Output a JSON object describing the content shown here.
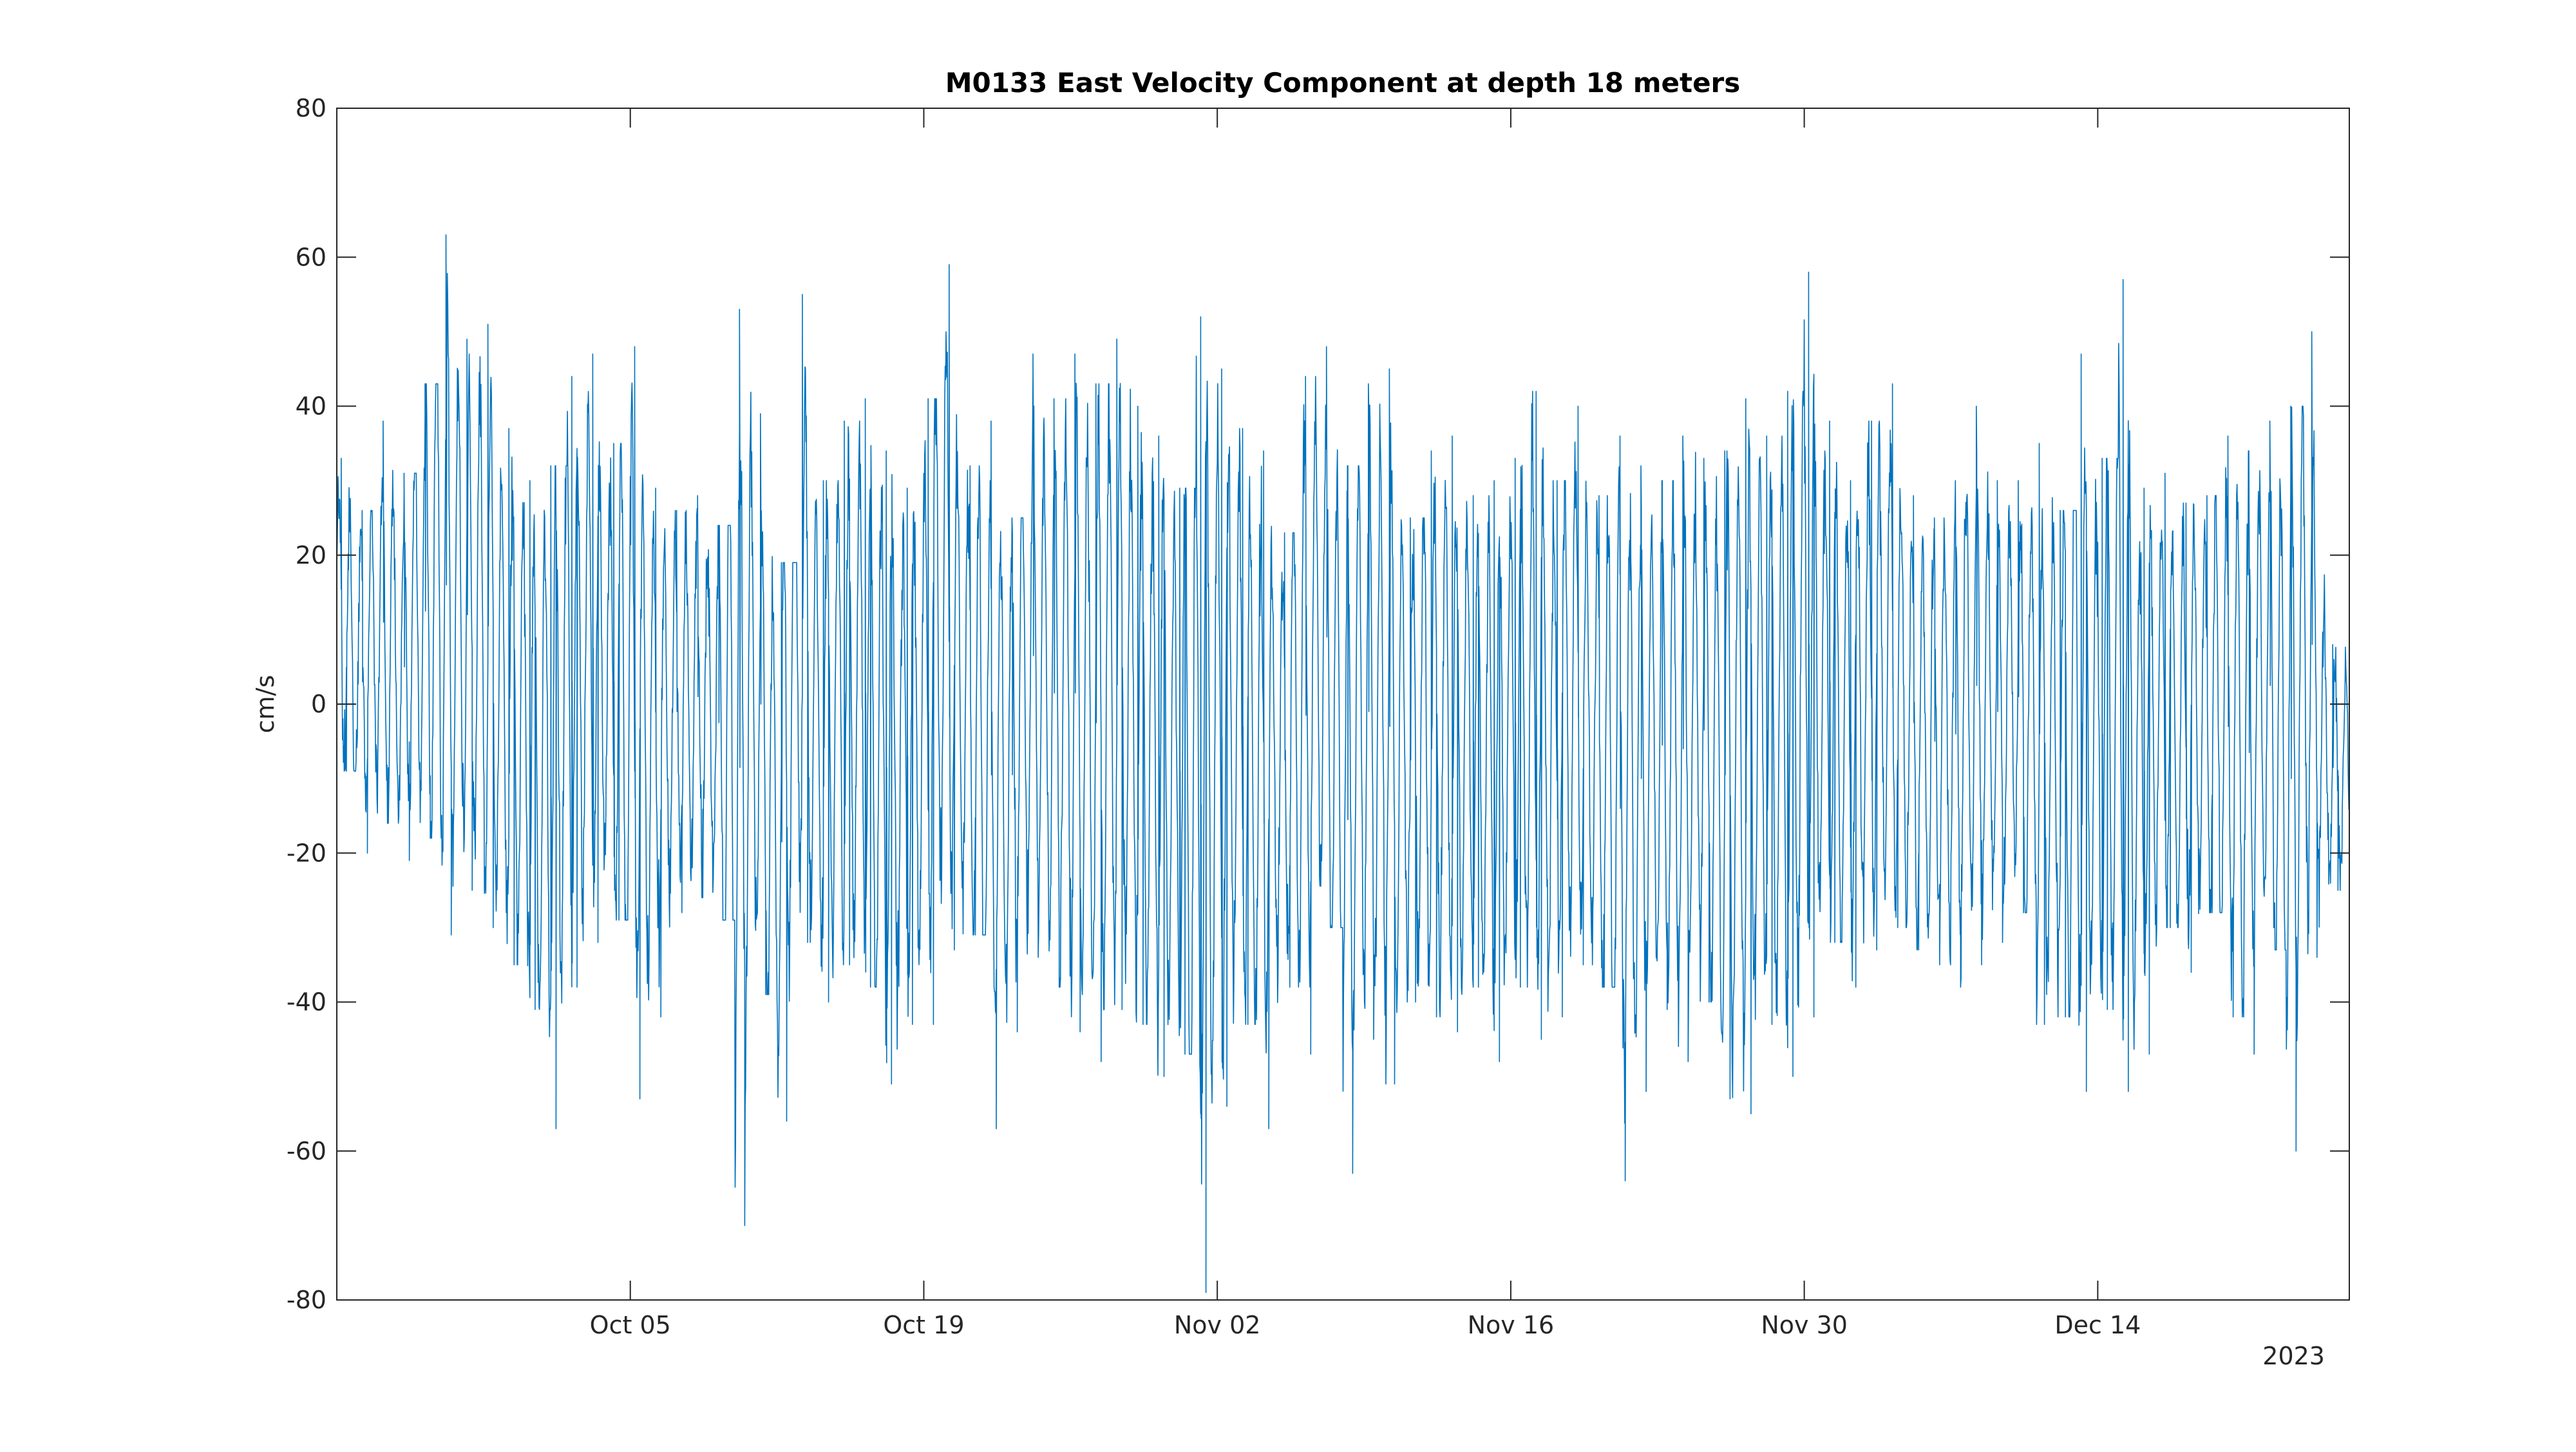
{
  "chart_data": {
    "type": "line",
    "title": "M0133 East Velocity Component at depth 18 meters",
    "xlabel": "",
    "ylabel": "cm/s",
    "x_secondary_label": "2023",
    "xlim": [
      "2023-09-21",
      "2023-12-26"
    ],
    "ylim": [
      -80,
      80
    ],
    "yticks": [
      80,
      60,
      40,
      20,
      0,
      -20,
      -40,
      -60,
      -80
    ],
    "yticklabels": [
      "80",
      "60",
      "40",
      "20",
      "0",
      "-20",
      "-40",
      "-60",
      "-80"
    ],
    "xticks": [
      "2023-10-05",
      "2023-10-19",
      "2023-11-02",
      "2023-11-16",
      "2023-11-30",
      "2023-12-14"
    ],
    "xticklabels": [
      "Oct 05",
      "Oct 19",
      "Nov 02",
      "Nov 16",
      "Nov 30",
      "Dec 14"
    ],
    "grid": false,
    "series": [
      {
        "color": "#0072BD",
        "sampling": "hourly",
        "x": [
          "2023-09-21",
          "2023-09-22",
          "2023-09-23",
          "2023-09-24",
          "2023-09-25",
          "2023-09-26",
          "2023-09-27",
          "2023-09-28",
          "2023-09-29",
          "2023-09-30",
          "2023-10-01",
          "2023-10-02",
          "2023-10-03",
          "2023-10-04",
          "2023-10-05",
          "2023-10-06",
          "2023-10-07",
          "2023-10-08",
          "2023-10-09",
          "2023-10-10",
          "2023-10-11",
          "2023-10-12",
          "2023-10-13",
          "2023-10-14",
          "2023-10-15",
          "2023-10-16",
          "2023-10-17",
          "2023-10-18",
          "2023-10-19",
          "2023-10-20",
          "2023-10-21",
          "2023-10-22",
          "2023-10-23",
          "2023-10-24",
          "2023-10-25",
          "2023-10-26",
          "2023-10-27",
          "2023-10-28",
          "2023-10-29",
          "2023-10-30",
          "2023-10-31",
          "2023-11-01",
          "2023-11-02",
          "2023-11-03",
          "2023-11-04",
          "2023-11-05",
          "2023-11-06",
          "2023-11-07",
          "2023-11-08",
          "2023-11-09",
          "2023-11-10",
          "2023-11-11",
          "2023-11-12",
          "2023-11-13",
          "2023-11-14",
          "2023-11-15",
          "2023-11-16",
          "2023-11-17",
          "2023-11-18",
          "2023-11-19",
          "2023-11-20",
          "2023-11-21",
          "2023-11-22",
          "2023-11-23",
          "2023-11-24",
          "2023-11-25",
          "2023-11-26",
          "2023-11-27",
          "2023-11-28",
          "2023-11-29",
          "2023-11-30",
          "2023-12-01",
          "2023-12-02",
          "2023-12-03",
          "2023-12-04",
          "2023-12-05",
          "2023-12-06",
          "2023-12-07",
          "2023-12-08",
          "2023-12-09",
          "2023-12-10",
          "2023-12-11",
          "2023-12-12",
          "2023-12-13",
          "2023-12-14",
          "2023-12-15",
          "2023-12-16",
          "2023-12-17",
          "2023-12-18",
          "2023-12-19",
          "2023-12-20",
          "2023-12-21",
          "2023-12-22",
          "2023-12-23",
          "2023-12-24",
          "2023-12-25"
        ],
        "y_max": [
          33,
          26,
          38,
          31,
          43,
          63,
          49,
          51,
          37,
          30,
          32,
          44,
          47,
          35,
          48,
          29,
          26,
          28,
          24,
          53,
          39,
          19,
          55,
          30,
          38,
          41,
          34,
          29,
          41,
          59,
          32,
          38,
          25,
          47,
          41,
          47,
          43,
          49,
          40,
          36,
          29,
          52,
          45,
          37,
          34,
          23,
          44,
          48,
          32,
          43,
          45,
          25,
          34,
          36,
          28,
          30,
          33,
          42,
          30,
          40,
          28,
          36,
          32,
          30,
          36,
          33,
          34,
          41,
          36,
          42,
          58,
          38,
          30,
          38,
          43,
          28,
          25,
          30,
          40,
          30,
          30,
          35,
          26,
          47,
          33,
          57,
          29,
          31,
          27,
          28,
          36,
          34,
          38,
          40,
          50,
          8
        ],
        "y_min": [
          -9,
          -20,
          -16,
          -21,
          -18,
          -31,
          -25,
          -30,
          -35,
          -41,
          -57,
          -38,
          -32,
          -29,
          -53,
          -42,
          -28,
          -26,
          -29,
          -70,
          -39,
          -56,
          -32,
          -40,
          -35,
          -38,
          -51,
          -43,
          -43,
          -33,
          -31,
          -57,
          -44,
          -34,
          -38,
          -44,
          -48,
          -41,
          -43,
          -50,
          -47,
          -79,
          -54,
          -43,
          -57,
          -38,
          -47,
          -30,
          -63,
          -45,
          -51,
          -40,
          -42,
          -44,
          -38,
          -48,
          -38,
          -45,
          -42,
          -35,
          -38,
          -64,
          -52,
          -41,
          -48,
          -40,
          -53,
          -55,
          -43,
          -50,
          -42,
          -32,
          -38,
          -33,
          -30,
          -33,
          -35,
          -38,
          -35,
          -32,
          -28,
          -43,
          -42,
          -52,
          -41,
          -52,
          -47,
          -30,
          -36,
          -28,
          -42,
          -47,
          -33,
          -60,
          -34,
          -25
        ]
      }
    ]
  }
}
